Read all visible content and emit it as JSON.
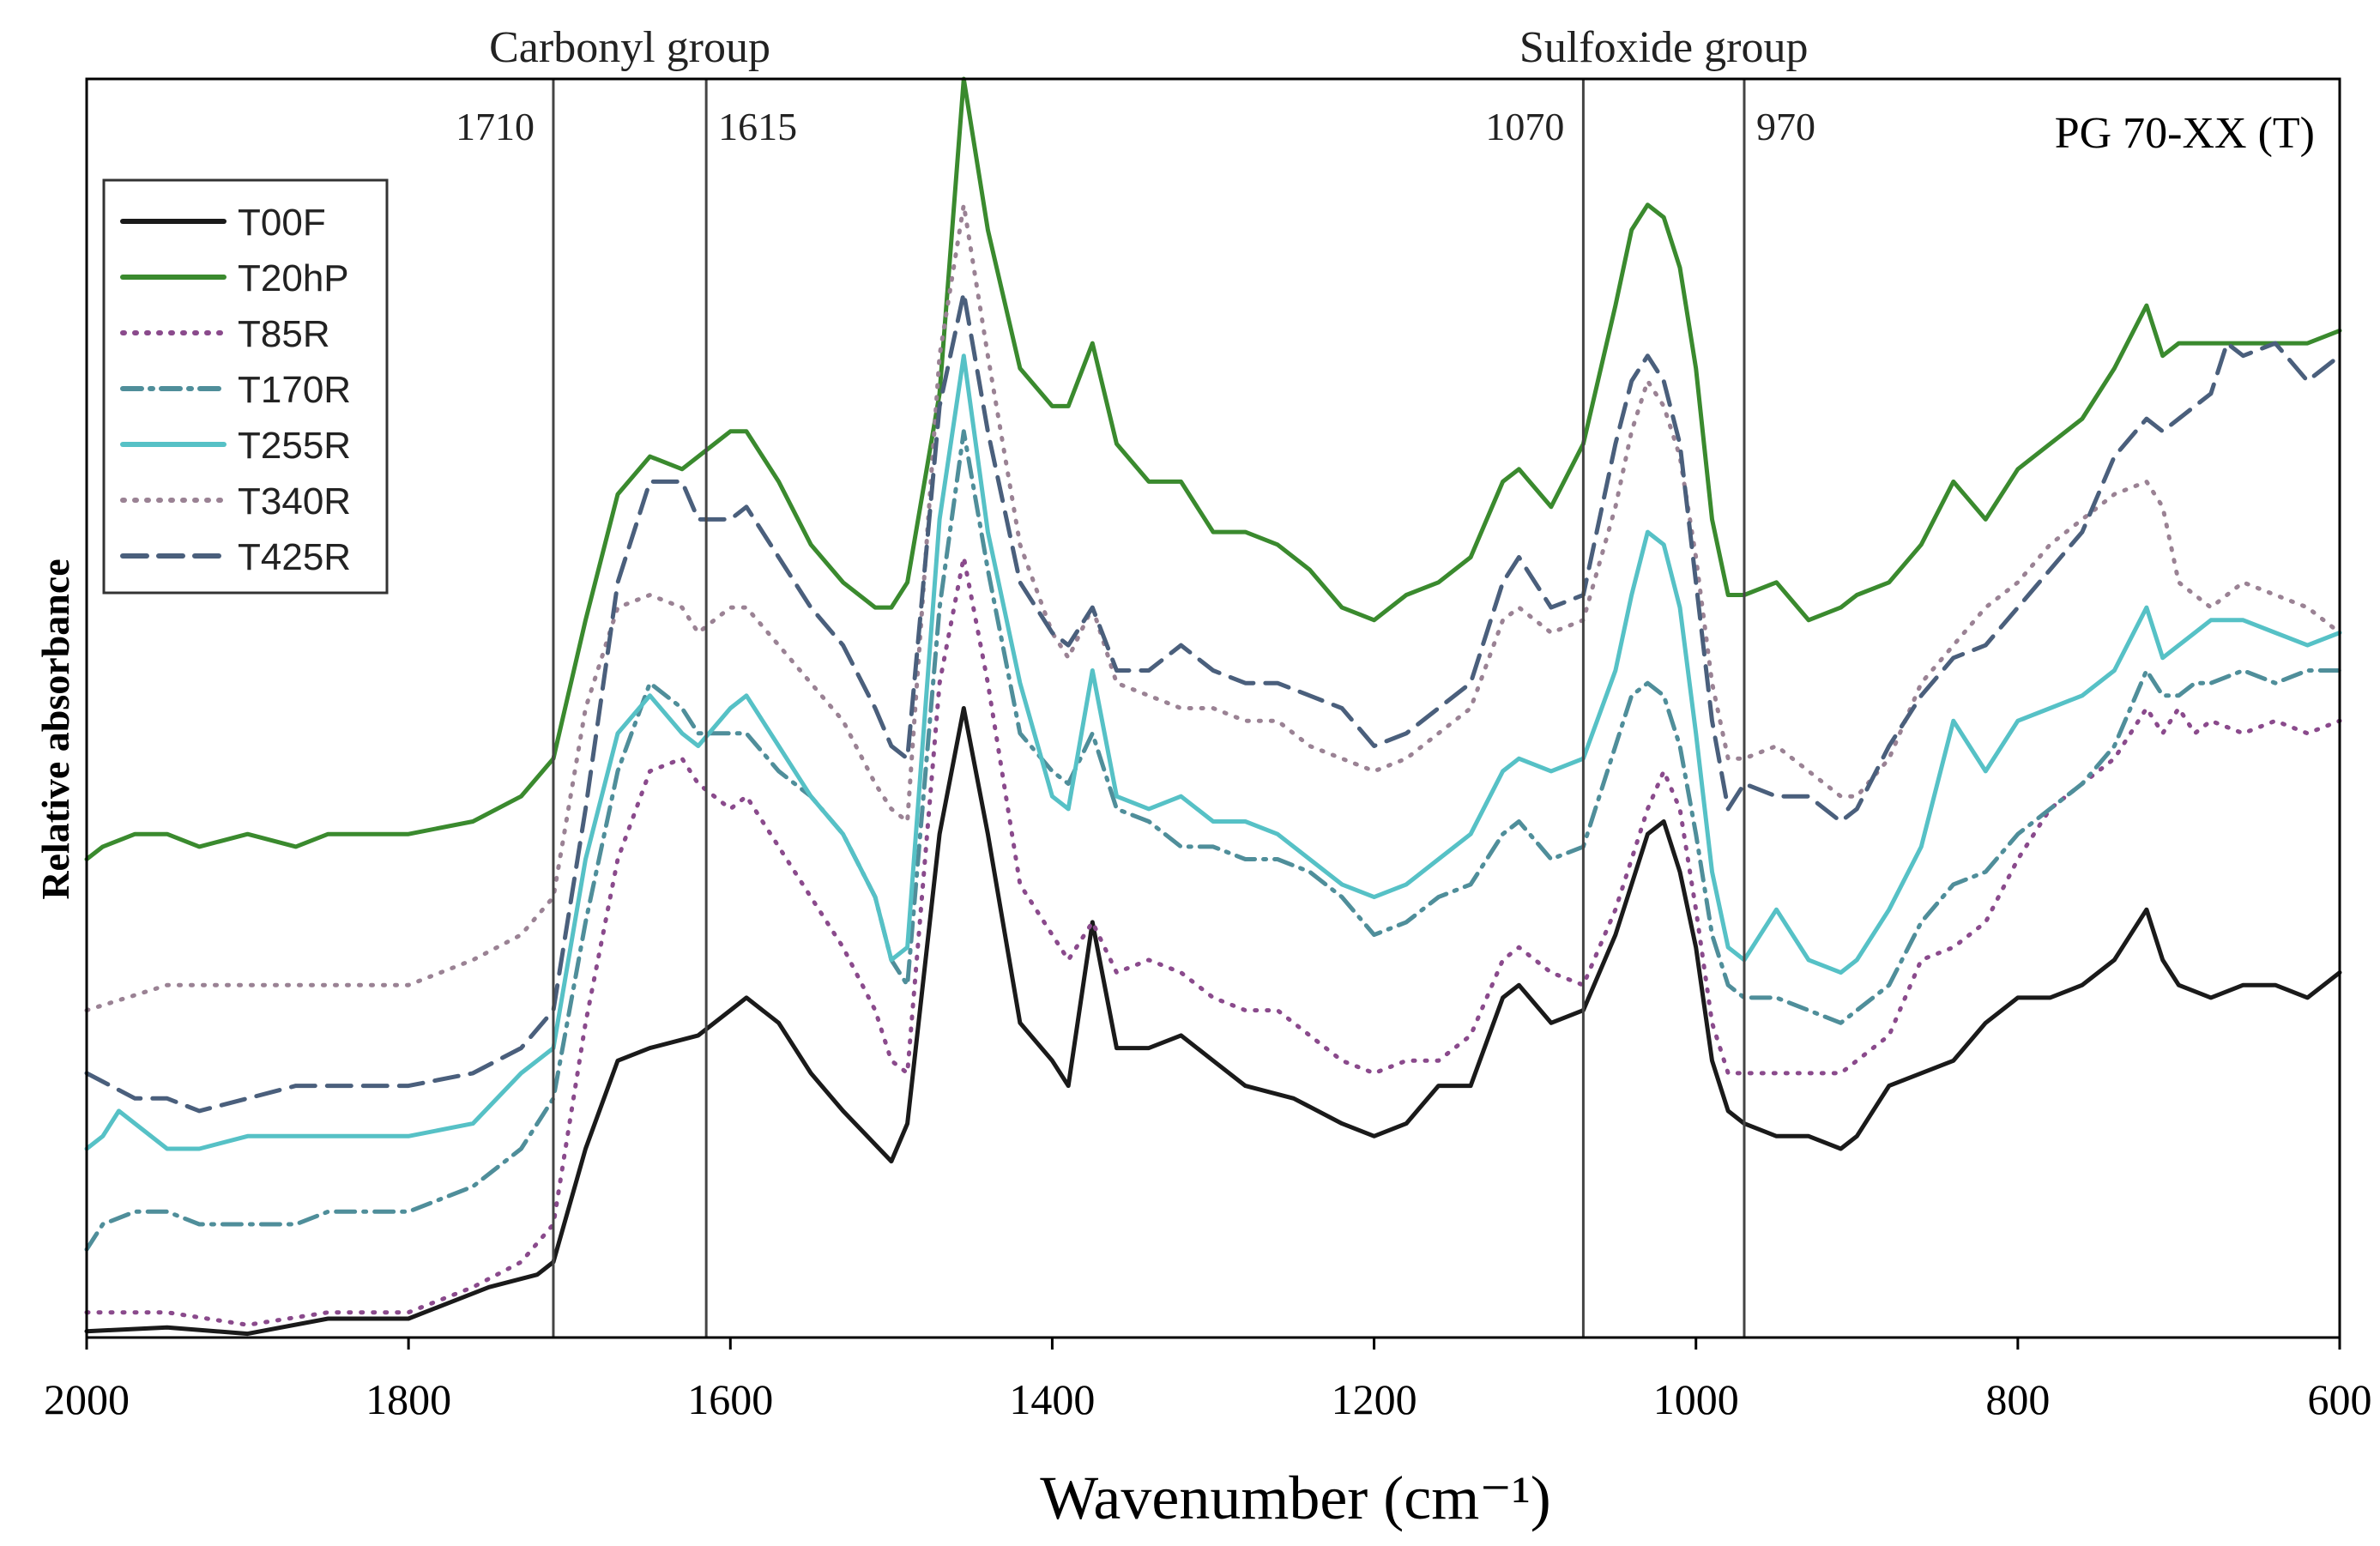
{
  "chart_data": {
    "type": "line",
    "title": "PG 70-XX (T)",
    "xlabel": "Wavenumber (cm⁻¹)",
    "ylabel": "Relative absorbance",
    "xlim": [
      2000,
      600
    ],
    "x_reversed": true,
    "ylim": [
      0,
      100
    ],
    "x_ticks": [
      2000,
      1800,
      1600,
      1400,
      1200,
      1000,
      800,
      600
    ],
    "y_ticks_shown": false,
    "groups": [
      {
        "label": "Carbonyl group",
        "range": [
          1710,
          1615
        ]
      },
      {
        "label": "Sulfoxide group",
        "range": [
          1070,
          970
        ]
      }
    ],
    "reference_lines": [
      {
        "x": 1710,
        "label": "1710"
      },
      {
        "x": 1615,
        "label": "1615"
      },
      {
        "x": 1070,
        "label": "1070"
      },
      {
        "x": 970,
        "label": "970"
      }
    ],
    "legend_position": "top-left",
    "series": [
      {
        "name": "T00F",
        "color": "#1a1a1a",
        "style": "solid",
        "x": [
          2000,
          1950,
          1900,
          1850,
          1800,
          1750,
          1720,
          1710,
          1690,
          1670,
          1650,
          1620,
          1600,
          1590,
          1570,
          1550,
          1530,
          1500,
          1490,
          1470,
          1455,
          1440,
          1420,
          1400,
          1390,
          1375,
          1360,
          1340,
          1320,
          1300,
          1280,
          1250,
          1220,
          1200,
          1180,
          1160,
          1140,
          1120,
          1110,
          1090,
          1070,
          1050,
          1040,
          1030,
          1020,
          1010,
          1000,
          990,
          980,
          970,
          950,
          930,
          910,
          900,
          880,
          860,
          840,
          820,
          800,
          780,
          760,
          740,
          720,
          710,
          700,
          680,
          660,
          640,
          620,
          600
        ],
        "y": [
          0.5,
          0.8,
          0.3,
          1.5,
          1.5,
          4,
          5,
          6,
          15,
          22,
          23,
          24,
          26,
          27,
          25,
          21,
          18,
          14,
          17,
          40,
          50,
          40,
          25,
          22,
          20,
          33,
          23,
          23,
          24,
          22,
          20,
          19,
          17,
          16,
          17,
          20,
          20,
          27,
          28,
          25,
          26,
          32,
          36,
          40,
          41,
          37,
          31,
          22,
          18,
          17,
          16,
          16,
          15,
          16,
          20,
          21,
          22,
          25,
          27,
          27,
          28,
          30,
          34,
          30,
          28,
          27,
          28,
          28,
          27,
          29
        ]
      },
      {
        "name": "T20hP",
        "color": "#3a8a2e",
        "style": "solid",
        "x": [
          2000,
          1990,
          1970,
          1950,
          1930,
          1900,
          1870,
          1850,
          1800,
          1760,
          1730,
          1710,
          1690,
          1670,
          1650,
          1630,
          1620,
          1600,
          1590,
          1570,
          1550,
          1530,
          1510,
          1500,
          1490,
          1470,
          1455,
          1440,
          1420,
          1400,
          1390,
          1375,
          1360,
          1340,
          1320,
          1300,
          1280,
          1260,
          1240,
          1220,
          1200,
          1180,
          1160,
          1140,
          1120,
          1110,
          1090,
          1070,
          1050,
          1040,
          1030,
          1020,
          1010,
          1000,
          990,
          980,
          970,
          950,
          930,
          910,
          900,
          880,
          860,
          840,
          820,
          800,
          780,
          760,
          740,
          720,
          710,
          700,
          690,
          680,
          660,
          640,
          620,
          600
        ],
        "y": [
          38,
          39,
          40,
          40,
          39,
          40,
          39,
          40,
          40,
          41,
          43,
          46,
          57,
          67,
          70,
          69,
          70,
          72,
          72,
          68,
          63,
          60,
          58,
          58,
          60,
          75,
          100,
          88,
          77,
          74,
          74,
          79,
          71,
          68,
          68,
          64,
          64,
          63,
          61,
          58,
          57,
          59,
          60,
          62,
          68,
          69,
          66,
          71,
          82,
          88,
          90,
          89,
          85,
          77,
          65,
          59,
          59,
          60,
          57,
          58,
          59,
          60,
          63,
          68,
          65,
          69,
          71,
          73,
          77,
          82,
          78,
          79,
          79,
          79,
          79,
          79,
          79,
          80
        ]
      },
      {
        "name": "T85R",
        "color": "#8a4a8c",
        "style": "dotted",
        "x": [
          2000,
          1950,
          1900,
          1850,
          1800,
          1760,
          1730,
          1710,
          1690,
          1670,
          1650,
          1630,
          1620,
          1600,
          1590,
          1570,
          1550,
          1530,
          1510,
          1500,
          1490,
          1470,
          1455,
          1440,
          1420,
          1400,
          1390,
          1375,
          1360,
          1340,
          1320,
          1300,
          1280,
          1260,
          1240,
          1220,
          1200,
          1180,
          1160,
          1140,
          1120,
          1110,
          1090,
          1070,
          1050,
          1040,
          1030,
          1020,
          1010,
          1000,
          990,
          980,
          970,
          950,
          930,
          910,
          900,
          880,
          860,
          840,
          820,
          800,
          780,
          760,
          740,
          720,
          710,
          700,
          690,
          680,
          660,
          640,
          620,
          600
        ],
        "y": [
          2,
          2,
          1,
          2,
          2,
          4,
          6,
          9,
          25,
          38,
          45,
          46,
          44,
          42,
          43,
          39,
          35,
          31,
          26,
          22,
          21,
          52,
          62,
          52,
          36,
          32,
          30,
          33,
          29,
          30,
          29,
          27,
          26,
          26,
          24,
          22,
          21,
          22,
          22,
          24,
          30,
          31,
          29,
          28,
          34,
          38,
          42,
          45,
          42,
          34,
          25,
          21,
          21,
          21,
          21,
          21,
          22,
          24,
          30,
          31,
          33,
          38,
          42,
          44,
          46,
          50,
          48,
          50,
          48,
          49,
          48,
          49,
          48,
          49
        ]
      },
      {
        "name": "T170R",
        "color": "#4f8e9a",
        "style": "dashdot",
        "x": [
          2000,
          1990,
          1970,
          1950,
          1930,
          1900,
          1870,
          1850,
          1800,
          1760,
          1730,
          1710,
          1690,
          1670,
          1650,
          1630,
          1620,
          1600,
          1590,
          1570,
          1550,
          1530,
          1510,
          1500,
          1490,
          1470,
          1455,
          1440,
          1420,
          1400,
          1390,
          1375,
          1360,
          1340,
          1320,
          1300,
          1280,
          1260,
          1240,
          1220,
          1200,
          1180,
          1160,
          1140,
          1120,
          1110,
          1090,
          1070,
          1050,
          1040,
          1030,
          1020,
          1010,
          1000,
          990,
          980,
          970,
          950,
          930,
          910,
          900,
          880,
          860,
          840,
          820,
          800,
          780,
          760,
          740,
          720,
          710,
          700,
          690,
          680,
          660,
          640,
          620,
          600
        ],
        "y": [
          7,
          9,
          10,
          10,
          9,
          9,
          9,
          10,
          10,
          12,
          15,
          19,
          33,
          45,
          52,
          50,
          48,
          48,
          48,
          45,
          43,
          40,
          35,
          30,
          28,
          58,
          72,
          61,
          48,
          45,
          44,
          48,
          42,
          41,
          39,
          39,
          38,
          38,
          37,
          35,
          32,
          33,
          35,
          36,
          40,
          41,
          38,
          39,
          47,
          51,
          52,
          51,
          47,
          40,
          32,
          28,
          27,
          27,
          26,
          25,
          26,
          28,
          33,
          36,
          37,
          40,
          42,
          44,
          47,
          53,
          51,
          51,
          52,
          52,
          53,
          52,
          53,
          53
        ]
      },
      {
        "name": "T255R",
        "color": "#56c1c6",
        "style": "solid",
        "x": [
          2000,
          1990,
          1980,
          1970,
          1950,
          1930,
          1900,
          1870,
          1850,
          1800,
          1760,
          1730,
          1710,
          1690,
          1670,
          1650,
          1630,
          1620,
          1600,
          1590,
          1570,
          1550,
          1530,
          1510,
          1500,
          1490,
          1470,
          1455,
          1440,
          1420,
          1400,
          1390,
          1375,
          1360,
          1340,
          1320,
          1300,
          1280,
          1260,
          1240,
          1220,
          1200,
          1180,
          1160,
          1140,
          1120,
          1110,
          1090,
          1070,
          1050,
          1040,
          1030,
          1020,
          1010,
          1000,
          990,
          980,
          970,
          950,
          930,
          910,
          900,
          880,
          860,
          840,
          820,
          800,
          780,
          760,
          740,
          720,
          710,
          700,
          690,
          680,
          660,
          640,
          620,
          600
        ],
        "y": [
          15,
          16,
          18,
          17,
          15,
          15,
          16,
          16,
          16,
          16,
          17,
          21,
          23,
          38,
          48,
          51,
          48,
          47,
          50,
          51,
          47,
          43,
          40,
          35,
          30,
          31,
          65,
          78,
          64,
          52,
          43,
          42,
          53,
          43,
          42,
          43,
          41,
          41,
          40,
          38,
          36,
          35,
          36,
          38,
          40,
          45,
          46,
          45,
          46,
          53,
          59,
          64,
          63,
          58,
          48,
          37,
          31,
          30,
          34,
          30,
          29,
          30,
          34,
          39,
          49,
          45,
          49,
          50,
          51,
          53,
          58,
          54,
          55,
          56,
          57,
          57,
          56,
          55,
          56
        ]
      },
      {
        "name": "T340R",
        "color": "#9a8294",
        "style": "dotted",
        "x": [
          2000,
          1950,
          1900,
          1850,
          1800,
          1760,
          1730,
          1710,
          1690,
          1670,
          1650,
          1630,
          1620,
          1600,
          1590,
          1570,
          1550,
          1530,
          1510,
          1500,
          1490,
          1470,
          1455,
          1440,
          1420,
          1400,
          1390,
          1375,
          1360,
          1340,
          1320,
          1300,
          1280,
          1260,
          1240,
          1220,
          1200,
          1180,
          1160,
          1140,
          1120,
          1110,
          1090,
          1070,
          1050,
          1040,
          1030,
          1020,
          1010,
          1000,
          990,
          980,
          970,
          950,
          930,
          910,
          900,
          880,
          860,
          840,
          820,
          800,
          780,
          760,
          740,
          720,
          710,
          700,
          690,
          680,
          660,
          640,
          620,
          600
        ],
        "y": [
          26,
          28,
          28,
          28,
          28,
          30,
          32,
          35,
          50,
          58,
          59,
          58,
          56,
          58,
          58,
          55,
          52,
          49,
          44,
          42,
          41,
          78,
          90,
          78,
          63,
          56,
          54,
          58,
          52,
          51,
          50,
          50,
          49,
          49,
          47,
          46,
          45,
          46,
          48,
          50,
          57,
          58,
          56,
          57,
          66,
          72,
          76,
          74,
          70,
          62,
          52,
          46,
          46,
          47,
          45,
          43,
          43,
          46,
          52,
          55,
          58,
          60,
          63,
          65,
          67,
          68,
          66,
          60,
          59,
          58,
          60,
          59,
          58,
          56
        ]
      },
      {
        "name": "T425R",
        "color": "#4a5f7c",
        "style": "dashed",
        "x": [
          2000,
          1970,
          1950,
          1930,
          1900,
          1870,
          1850,
          1800,
          1760,
          1730,
          1710,
          1690,
          1670,
          1650,
          1630,
          1620,
          1600,
          1590,
          1570,
          1550,
          1530,
          1510,
          1500,
          1490,
          1470,
          1455,
          1440,
          1420,
          1400,
          1390,
          1375,
          1360,
          1340,
          1320,
          1300,
          1280,
          1260,
          1240,
          1220,
          1200,
          1180,
          1160,
          1140,
          1120,
          1110,
          1090,
          1070,
          1050,
          1040,
          1030,
          1020,
          1010,
          1000,
          990,
          980,
          970,
          950,
          930,
          910,
          900,
          880,
          860,
          840,
          820,
          800,
          780,
          760,
          740,
          720,
          710,
          700,
          690,
          680,
          670,
          660,
          640,
          620,
          600
        ],
        "y": [
          21,
          19,
          19,
          18,
          19,
          20,
          20,
          20,
          21,
          23,
          26,
          42,
          60,
          68,
          68,
          65,
          65,
          66,
          62,
          58,
          55,
          50,
          47,
          46,
          74,
          83,
          72,
          60,
          56,
          55,
          58,
          53,
          53,
          55,
          53,
          52,
          52,
          51,
          50,
          47,
          48,
          50,
          52,
          60,
          62,
          58,
          59,
          71,
          76,
          78,
          76,
          71,
          60,
          49,
          42,
          44,
          43,
          43,
          41,
          42,
          47,
          51,
          54,
          55,
          58,
          61,
          64,
          70,
          73,
          72,
          73,
          74,
          75,
          79,
          78,
          79,
          76,
          78
        ]
      }
    ]
  }
}
